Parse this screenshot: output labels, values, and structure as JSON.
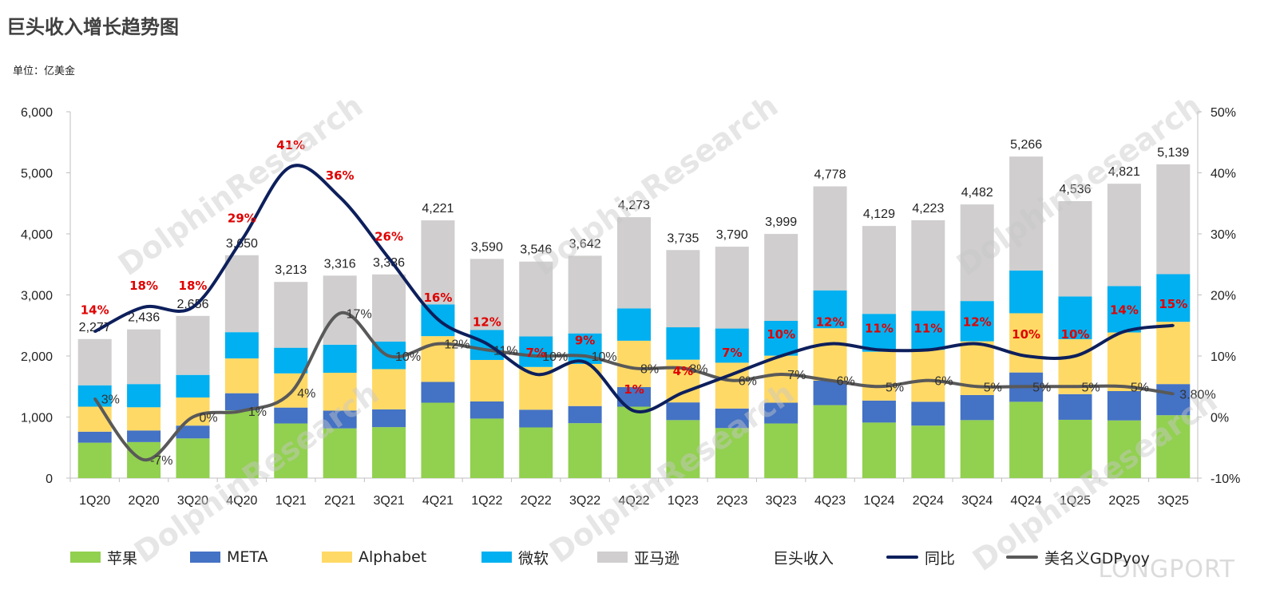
{
  "title": "巨头收入增长趋势图",
  "unit": "单位：亿美金",
  "watermark_text": "DolphinResearch",
  "brand_text": "LONGPORT",
  "chart_data": {
    "type": "bar",
    "stacked": true,
    "categories": [
      "1Q20",
      "2Q20",
      "3Q20",
      "4Q20",
      "1Q21",
      "2Q21",
      "3Q21",
      "4Q21",
      "1Q22",
      "2Q22",
      "3Q22",
      "4Q22",
      "1Q23",
      "2Q23",
      "3Q23",
      "4Q23",
      "1Q24",
      "2Q24",
      "3Q24",
      "4Q24",
      "1Q25",
      "2Q25",
      "3Q25"
    ],
    "y_left_ticks": [
      "6,000",
      "5,000",
      "4,000",
      "3,000",
      "2,000",
      "1,000",
      "0"
    ],
    "y_right_ticks": [
      "50%",
      "40%",
      "30%",
      "20%",
      "10%",
      "0%",
      "-10%"
    ],
    "ylim_left": [
      0,
      6000
    ],
    "ylim_right": [
      -10,
      50
    ],
    "grid": false,
    "legend_position": "bottom",
    "series": [
      {
        "name": "苹果",
        "color": "#92d050",
        "values": [
          580,
          590,
          650,
          1110,
          895,
          815,
          835,
          1235,
          975,
          830,
          900,
          1170,
          950,
          820,
          895,
          1195,
          910,
          860,
          950,
          1250,
          955,
          945,
          1030
        ]
      },
      {
        "name": "META",
        "color": "#4472c4",
        "values": [
          180,
          190,
          210,
          280,
          260,
          290,
          290,
          340,
          280,
          290,
          280,
          320,
          290,
          320,
          340,
          400,
          360,
          390,
          410,
          480,
          420,
          480,
          510
        ]
      },
      {
        "name": "Alphabet",
        "color": "#ffd966",
        "values": [
          410,
          380,
          460,
          570,
          560,
          620,
          660,
          750,
          680,
          700,
          690,
          760,
          700,
          750,
          770,
          860,
          800,
          850,
          880,
          970,
          900,
          960,
          1020
        ]
      },
      {
        "name": "微软",
        "color": "#00b0f0",
        "values": [
          350,
          380,
          370,
          430,
          420,
          460,
          450,
          520,
          490,
          500,
          500,
          530,
          530,
          560,
          570,
          620,
          620,
          640,
          660,
          700,
          700,
          760,
          780
        ]
      },
      {
        "name": "亚马逊",
        "color": "#d0cece",
        "values": [
          757,
          896,
          966,
          1260,
          1078,
          1131,
          1101,
          1376,
          1165,
          1226,
          1272,
          1493,
          1265,
          1340,
          1424,
          1703,
          1439,
          1483,
          1582,
          1866,
          1561,
          1676,
          1799
        ]
      }
    ],
    "totals": {
      "name": "巨头收入",
      "values": [
        2277,
        2436,
        2656,
        3650,
        3213,
        3316,
        3336,
        4221,
        3590,
        3546,
        3642,
        4273,
        3735,
        3790,
        3999,
        4778,
        4129,
        4223,
        4482,
        5266,
        4536,
        4821,
        5139
      ],
      "labels": [
        "2,277",
        "2,436",
        "2,656",
        "3,650",
        "3,213",
        "3,316",
        "3,336",
        "4,221",
        "3,590",
        "3,546",
        "3,642",
        "4,273",
        "3,735",
        "3,790",
        "3,999",
        "4,778",
        "4,129",
        "4,223",
        "4,482",
        "5,266",
        "4,536",
        "4,821",
        "5,139"
      ]
    },
    "yoy": {
      "name": "同比",
      "color": "#0d1f5c",
      "values": [
        14,
        18,
        18,
        29,
        41,
        36,
        26,
        16,
        12,
        7,
        9,
        1,
        4,
        7,
        10,
        12,
        11,
        11,
        12,
        10,
        10,
        14,
        15
      ],
      "labels": [
        "14%",
        "18%",
        "18%",
        "29%",
        "41%",
        "36%",
        "26%",
        "16%",
        "12%",
        "7%",
        "9%",
        "1%",
        "4%",
        "7%",
        "10%",
        "12%",
        "11%",
        "11%",
        "12%",
        "10%",
        "10%",
        "14%",
        "15%"
      ]
    },
    "gdp_yoy": {
      "name": "美名义GDPyoy",
      "color": "#595959",
      "values": [
        3,
        -7,
        0,
        1,
        4,
        17,
        10,
        12,
        11,
        10,
        10,
        8,
        8,
        6,
        7,
        6,
        5,
        6,
        5,
        5,
        5,
        5,
        3.8
      ],
      "labels": [
        "3%",
        "-7%",
        "0%",
        "1%",
        "4%",
        "17%",
        "10%",
        "12%",
        "11%",
        "10%",
        "10%",
        "8%",
        "8%",
        "6%",
        "7%",
        "6%",
        "5%",
        "6%",
        "5%",
        "5%",
        "5%",
        "5%",
        "3.80%"
      ]
    }
  }
}
